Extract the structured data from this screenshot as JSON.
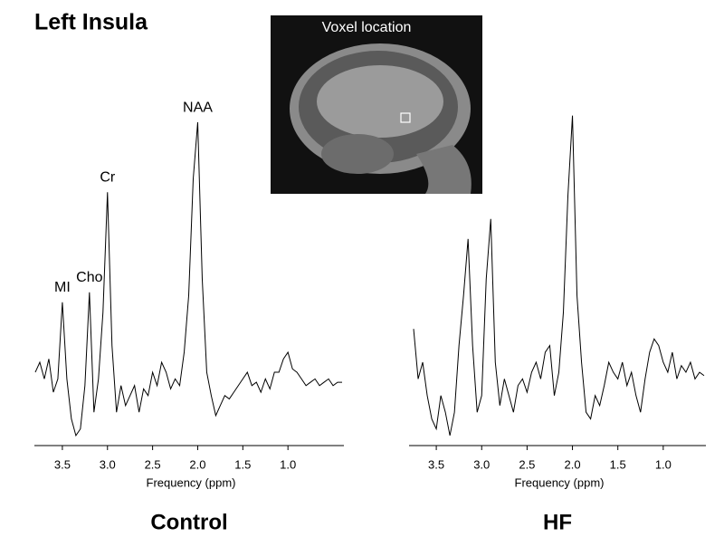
{
  "title": "Left Insula",
  "inset_label": "Voxel location",
  "chart_data": [
    {
      "type": "line",
      "title": "Control",
      "x_label": "Frequency (ppm)",
      "x": [
        3.8,
        3.75,
        3.7,
        3.65,
        3.6,
        3.55,
        3.5,
        3.45,
        3.4,
        3.35,
        3.3,
        3.25,
        3.2,
        3.15,
        3.1,
        3.05,
        3,
        2.95,
        2.9,
        2.85,
        2.8,
        2.75,
        2.7,
        2.65,
        2.6,
        2.55,
        2.5,
        2.45,
        2.4,
        2.35,
        2.3,
        2.25,
        2.2,
        2.15,
        2.1,
        2.05,
        2,
        1.95,
        1.9,
        1.85,
        1.8,
        1.75,
        1.7,
        1.65,
        1.6,
        1.55,
        1.5,
        1.45,
        1.4,
        1.35,
        1.3,
        1.25,
        1.2,
        1.15,
        1.1,
        1.05,
        1,
        0.95,
        0.9,
        0.85,
        0.8,
        0.75,
        0.7,
        0.65,
        0.6,
        0.55,
        0.5,
        0.45,
        0.4
      ],
      "series": [
        {
          "color": "#000000",
          "values": [
            22,
            25,
            20,
            26,
            16,
            20,
            43,
            20,
            8,
            3,
            5,
            18,
            46,
            10,
            20,
            40,
            76,
            30,
            10,
            18,
            12,
            15,
            18,
            10,
            17,
            15,
            22,
            18,
            25,
            22,
            17,
            20,
            18,
            28,
            45,
            80,
            97,
            50,
            22,
            15,
            9,
            12,
            15,
            14,
            16,
            18,
            20,
            22,
            18,
            19,
            16,
            20,
            17,
            22,
            22,
            26,
            28,
            23,
            22,
            20,
            18,
            19,
            20,
            18,
            19,
            20,
            18,
            19,
            19
          ]
        }
      ],
      "xlim": [
        3.81,
        0.38
      ],
      "ylim": [
        0,
        100
      ],
      "xticks": [
        3.5,
        {
          "value": 3,
          "label": "3.0"
        },
        2.5,
        {
          "value": 2,
          "label": "2.0"
        },
        1.5,
        {
          "value": 1,
          "label": "1.0"
        }
      ],
      "annotations": [
        {
          "text": "MI",
          "x": 3.5
        },
        {
          "text": "Cho",
          "x": 3.2
        },
        {
          "text": "Cr",
          "x": 3
        },
        {
          "text": "NAA",
          "x": 2
        }
      ]
    },
    {
      "type": "line",
      "title": "HF",
      "x_label": "Frequency (ppm)",
      "x": [
        3.75,
        3.7,
        3.65,
        3.6,
        3.55,
        3.5,
        3.45,
        3.4,
        3.35,
        3.3,
        3.25,
        3.2,
        3.15,
        3.1,
        3.05,
        3,
        2.95,
        2.9,
        2.85,
        2.8,
        2.75,
        2.7,
        2.65,
        2.6,
        2.55,
        2.5,
        2.45,
        2.4,
        2.35,
        2.3,
        2.25,
        2.2,
        2.15,
        2.1,
        2.05,
        2,
        1.95,
        1.9,
        1.85,
        1.8,
        1.75,
        1.7,
        1.65,
        1.6,
        1.55,
        1.5,
        1.45,
        1.4,
        1.35,
        1.3,
        1.25,
        1.2,
        1.15,
        1.1,
        1.05,
        1,
        0.95,
        0.9,
        0.85,
        0.8,
        0.75,
        0.7,
        0.65,
        0.6,
        0.55
      ],
      "series": [
        {
          "color": "#000000",
          "values": [
            35,
            20,
            25,
            15,
            8,
            5,
            15,
            10,
            3,
            10,
            30,
            45,
            62,
            30,
            10,
            15,
            50,
            68,
            25,
            12,
            20,
            15,
            10,
            18,
            20,
            16,
            22,
            25,
            20,
            28,
            30,
            15,
            22,
            40,
            75,
            99,
            45,
            25,
            10,
            8,
            15,
            12,
            18,
            25,
            22,
            20,
            25,
            18,
            22,
            15,
            10,
            20,
            28,
            32,
            30,
            25,
            22,
            28,
            20,
            24,
            22,
            25,
            20,
            22,
            21
          ]
        }
      ],
      "xlim": [
        3.8,
        0.53
      ],
      "ylim": [
        0,
        100
      ],
      "xticks": [
        3.5,
        {
          "value": 3,
          "label": "3.0"
        },
        2.5,
        {
          "value": 2,
          "label": "2.0"
        },
        1.5,
        {
          "value": 1,
          "label": "1.0"
        }
      ]
    }
  ]
}
